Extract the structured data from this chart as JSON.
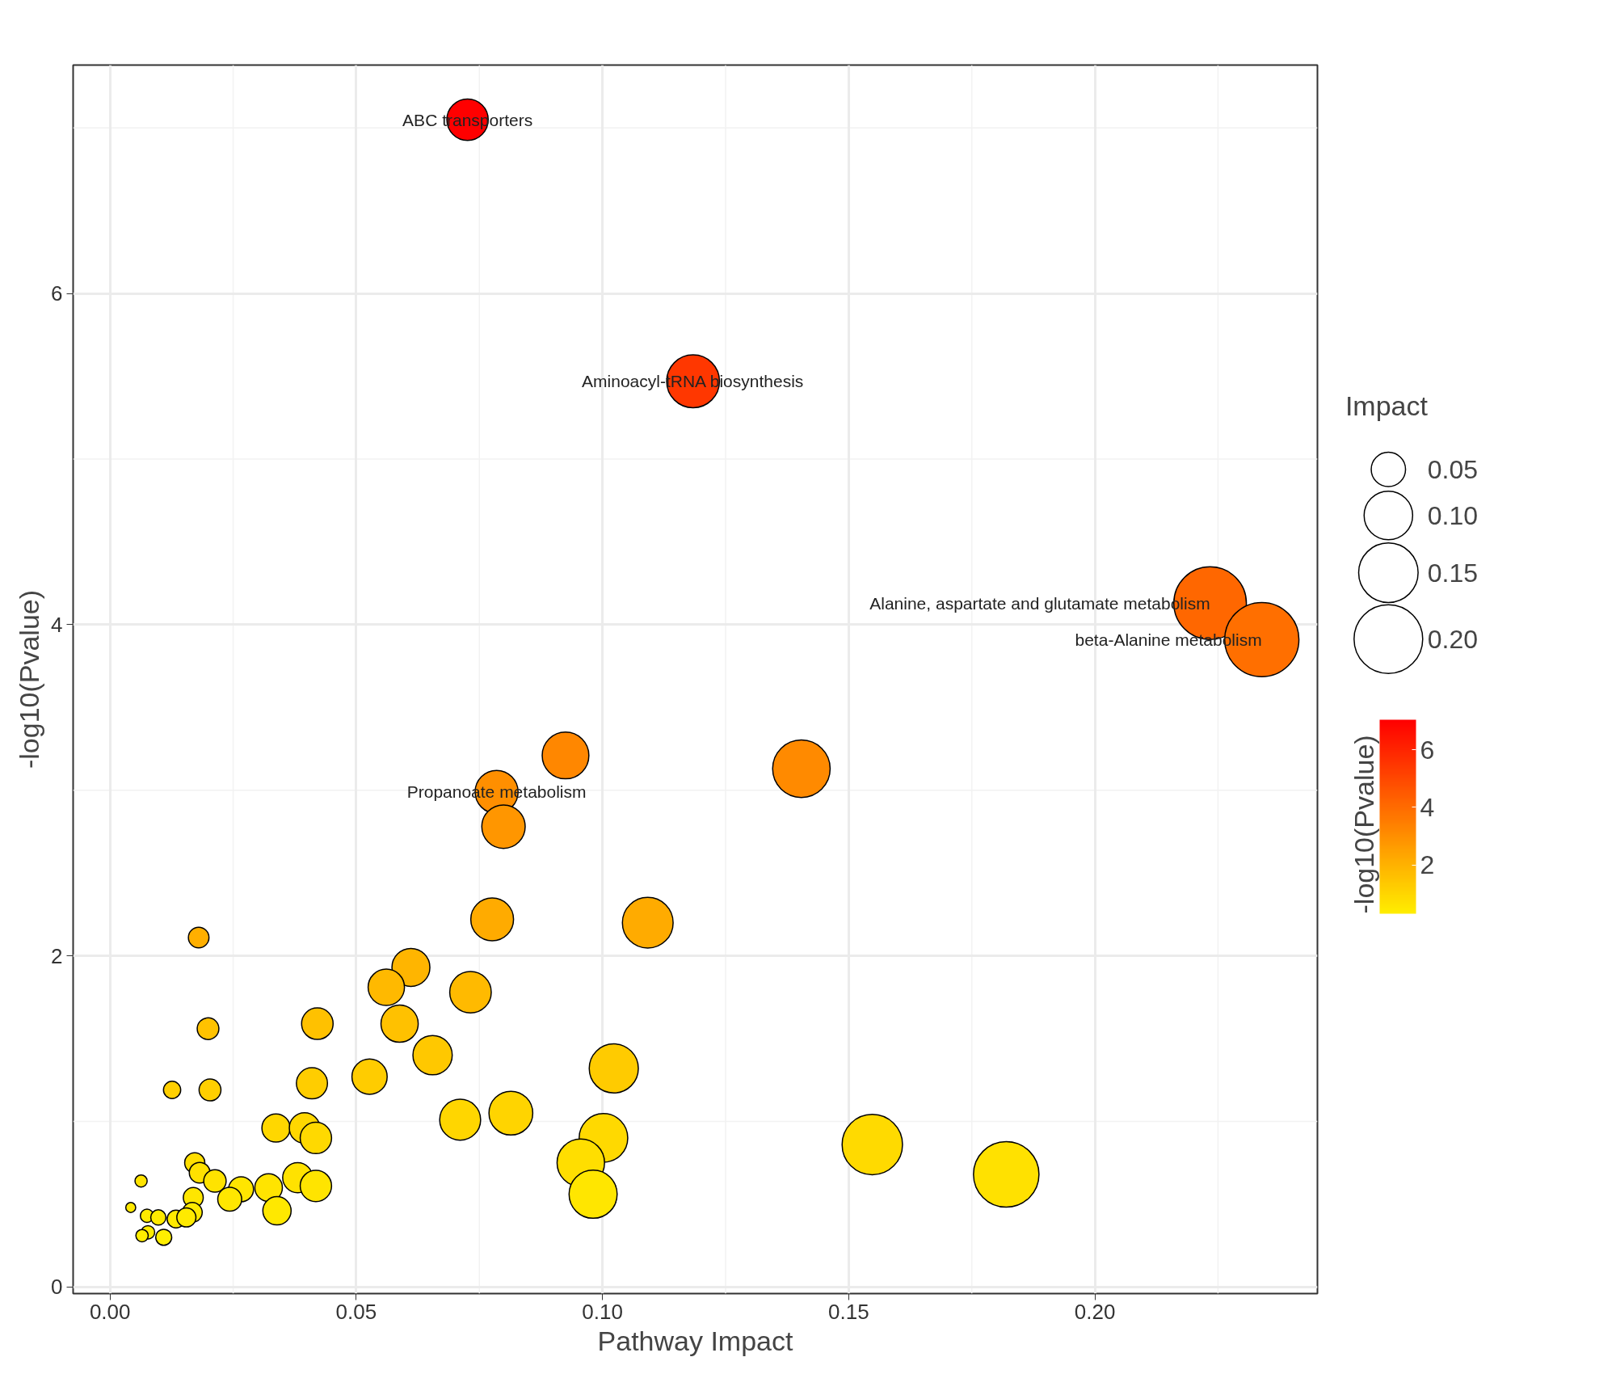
{
  "chart_data": {
    "type": "bubble",
    "xlabel": "Pathway Impact",
    "ylabel": "-log10(Pvalue)",
    "legend_title": "Impact",
    "clabel": "-log10(Pvalue)",
    "x": [
      0.0726,
      0.1184,
      0.2234,
      0.2339,
      0.0925,
      0.1404,
      0.0785,
      0.0799,
      0.0776,
      0.1092,
      0.018,
      0.0611,
      0.0561,
      0.0732,
      0.0421,
      0.0199,
      0.0588,
      0.0655,
      0.1023,
      0.0527,
      0.041,
      0.0126,
      0.0203,
      0.0814,
      0.0711,
      0.0337,
      0.0395,
      0.1002,
      0.0418,
      0.1548,
      0.0956,
      0.182,
      0.0981,
      0.0172,
      0.0182,
      0.0213,
      0.0063,
      0.0381,
      0.0418,
      0.0322,
      0.0266,
      0.0243,
      0.0169,
      0.0339,
      0.0167,
      0.0042,
      0.0075,
      0.0098,
      0.0134,
      0.0155,
      0.0077,
      0.0065,
      0.0109
    ],
    "values": [
      7.05,
      5.47,
      4.13,
      3.91,
      3.21,
      3.13,
      2.99,
      2.78,
      2.22,
      2.2,
      2.11,
      1.93,
      1.81,
      1.78,
      1.59,
      1.56,
      1.59,
      1.4,
      1.32,
      1.27,
      1.23,
      1.19,
      1.19,
      1.05,
      1.01,
      0.96,
      0.96,
      0.9,
      0.9,
      0.86,
      0.75,
      0.68,
      0.56,
      0.75,
      0.69,
      0.64,
      0.64,
      0.66,
      0.61,
      0.6,
      0.59,
      0.53,
      0.54,
      0.46,
      0.45,
      0.48,
      0.43,
      0.42,
      0.41,
      0.42,
      0.33,
      0.31,
      0.3
    ],
    "sizes": [
      0.0726,
      0.1184,
      0.2234,
      0.2339,
      0.0925,
      0.1404,
      0.0785,
      0.0799,
      0.0776,
      0.1092,
      0.018,
      0.0611,
      0.0561,
      0.0732,
      0.0421,
      0.0199,
      0.0588,
      0.0655,
      0.1023,
      0.0527,
      0.041,
      0.0126,
      0.0203,
      0.0814,
      0.0711,
      0.0337,
      0.0395,
      0.1002,
      0.0418,
      0.1548,
      0.0956,
      0.182,
      0.0981,
      0.0172,
      0.0182,
      0.0213,
      0.0063,
      0.0381,
      0.0418,
      0.0322,
      0.0266,
      0.0243,
      0.0169,
      0.0339,
      0.0167,
      0.0042,
      0.0075,
      0.0098,
      0.0134,
      0.0155,
      0.0077,
      0.0065,
      0.0109
    ],
    "cvalues": [
      7.05,
      5.47,
      4.13,
      3.91,
      3.21,
      3.13,
      2.99,
      2.78,
      2.22,
      2.2,
      2.11,
      1.93,
      1.81,
      1.78,
      1.59,
      1.56,
      1.59,
      1.4,
      1.32,
      1.27,
      1.23,
      1.19,
      1.19,
      1.05,
      1.01,
      0.96,
      0.96,
      0.9,
      0.9,
      0.86,
      0.75,
      0.68,
      0.56,
      0.75,
      0.69,
      0.64,
      0.64,
      0.66,
      0.61,
      0.6,
      0.59,
      0.53,
      0.54,
      0.46,
      0.45,
      0.48,
      0.43,
      0.42,
      0.41,
      0.42,
      0.33,
      0.31,
      0.3
    ],
    "size_legend": [
      0.05,
      {
        "value": 0.1,
        "label": "0.10"
      },
      0.15,
      {
        "value": 0.2,
        "label": "0.20"
      }
    ],
    "clim": [
      0.3,
      7.05
    ],
    "cticks": [
      2,
      4,
      6
    ],
    "xlim": [
      -0.0075,
      0.2452
    ],
    "ylim": [
      -0.04,
      7.38
    ],
    "xticks": [
      {
        "value": 0,
        "label": "0.00"
      },
      {
        "value": 0.05,
        "label": "0.05"
      },
      {
        "value": 0.1,
        "label": "0.10"
      },
      {
        "value": 0.15,
        "label": "0.15"
      },
      {
        "value": 0.2,
        "label": "0.20"
      }
    ],
    "yticks": [
      0,
      2,
      4,
      6
    ],
    "annotations": [
      {
        "text": "ABC transporters",
        "x": 0.0726,
        "y": 7.05
      },
      {
        "text": "Aminoacyl-tRNA biosynthesis",
        "x": 0.1184,
        "y": 5.47
      },
      {
        "text": "Alanine, aspartate and glutamate metabolism",
        "x": 0.2234,
        "y": 4.13
      },
      {
        "text": "beta-Alanine metabolism",
        "x": 0.2339,
        "y": 3.91
      },
      {
        "text": "Propanoate metabolism",
        "x": 0.0785,
        "y": 2.99
      }
    ],
    "grid": true,
    "marker": "circle"
  }
}
